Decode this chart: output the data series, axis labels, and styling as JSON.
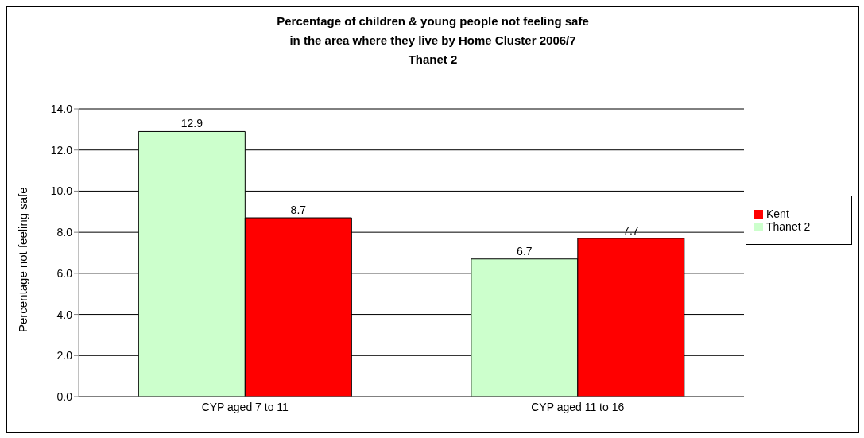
{
  "chart_data": {
    "type": "bar",
    "title": "Percentage of children & young people not feeling safe\nin the area where they live by Home Cluster 2006/7\nThanet 2",
    "ylabel": "Percentage not feeling safe",
    "categories": [
      "CYP aged 7 to 11",
      "CYP aged 11 to 16"
    ],
    "series": [
      {
        "name": "Thanet 2",
        "color": "#ccffcc",
        "values": [
          12.9,
          6.7
        ]
      },
      {
        "name": "Kent",
        "color": "#ff0000",
        "values": [
          8.7,
          7.7
        ]
      }
    ],
    "ylim": [
      0,
      14
    ],
    "yticks": [
      {
        "value": 0,
        "label": "0.0"
      },
      {
        "value": 2,
        "label": "2.0"
      },
      {
        "value": 4,
        "label": "4.0"
      },
      {
        "value": 6,
        "label": "6.0"
      },
      {
        "value": 8,
        "label": "8.0"
      },
      {
        "value": 10,
        "label": "10.0"
      },
      {
        "value": 12,
        "label": "12.0"
      },
      {
        "value": 14,
        "label": "14.0"
      }
    ],
    "grid": "y",
    "legend": "right",
    "data_labels": true
  }
}
